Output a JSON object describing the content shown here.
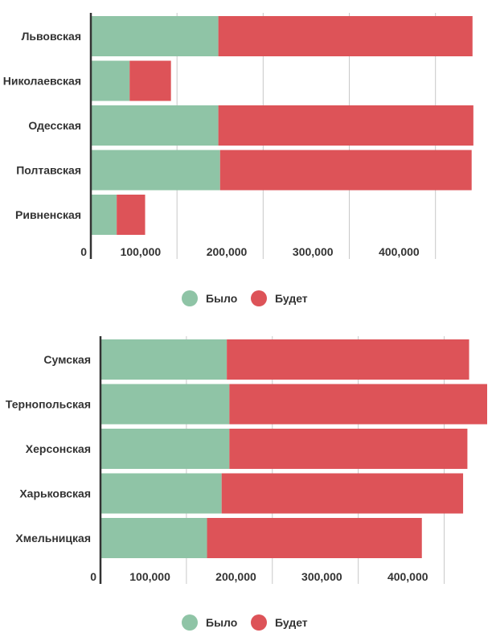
{
  "colors": {
    "before": "#8fc4a6",
    "after": "#dd5358",
    "grid": "#c8c8c8",
    "axis": "#333333"
  },
  "chart_data": [
    {
      "type": "bar",
      "orientation": "horizontal",
      "stacked": true,
      "categories": [
        "Львовская",
        "Николаевская",
        "Одесская",
        "Полтавская",
        "Ривненская"
      ],
      "series": [
        {
          "name": "Было",
          "values": [
            148000,
            45000,
            148000,
            150000,
            30000
          ]
        },
        {
          "name": "Будет",
          "values": [
            295000,
            48000,
            296000,
            292000,
            33000
          ]
        }
      ],
      "xlim": [
        0,
        460000
      ],
      "xticks": [
        0,
        100000,
        200000,
        300000,
        400000
      ],
      "xtick_labels": [
        "0",
        "100,000",
        "200,000",
        "300,000",
        "400,000"
      ],
      "grid": true,
      "legend": "bottom"
    },
    {
      "type": "bar",
      "orientation": "horizontal",
      "stacked": true,
      "categories": [
        "Сумская",
        "Тернопольская",
        "Херсонская",
        "Харьковская",
        "Хмельницкая"
      ],
      "series": [
        {
          "name": "Было",
          "values": [
            147000,
            150000,
            150000,
            141000,
            124000
          ]
        },
        {
          "name": "Будет",
          "values": [
            282000,
            300000,
            277000,
            281000,
            250000
          ]
        }
      ],
      "xlim": [
        0,
        450000
      ],
      "xticks": [
        0,
        100000,
        200000,
        300000,
        400000
      ],
      "xtick_labels": [
        "0",
        "100,000",
        "200,000",
        "300,000",
        "400,000"
      ],
      "grid": true,
      "legend": "bottom"
    }
  ]
}
